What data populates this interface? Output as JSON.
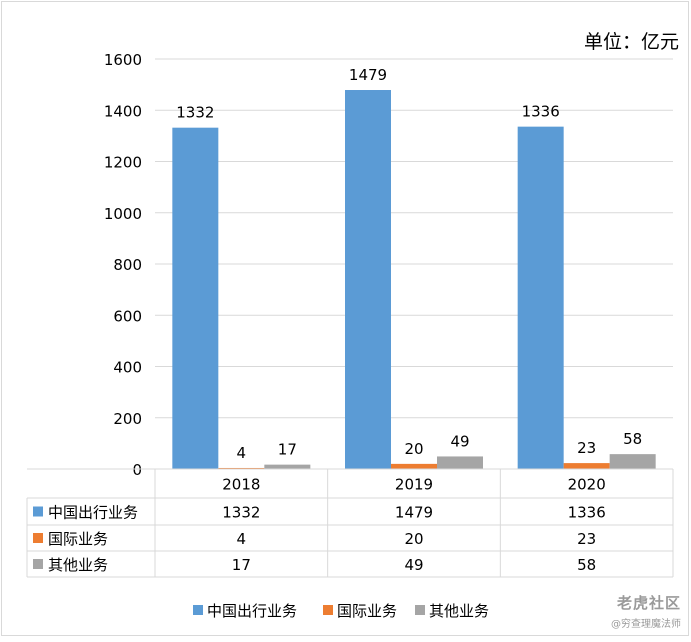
{
  "chart_data": {
    "type": "bar",
    "unit_label": "单位：亿元",
    "categories": [
      "2018",
      "2019",
      "2020"
    ],
    "ylim": [
      0,
      1600
    ],
    "yticks": [
      0,
      200,
      400,
      600,
      800,
      1000,
      1200,
      1400,
      1600
    ],
    "grid": true,
    "legend_position": "bottom",
    "series": [
      {
        "name": "中国出行业务",
        "values": [
          1332,
          1479,
          1336
        ],
        "color": "#5b9bd5"
      },
      {
        "name": "国际业务",
        "values": [
          4,
          20,
          23
        ],
        "color": "#ed7d31"
      },
      {
        "name": "其他业务",
        "values": [
          17,
          49,
          58
        ],
        "color": "#a5a5a5"
      }
    ]
  },
  "watermark": {
    "main": "老虎社区",
    "sub": "@穷查理魔法师"
  }
}
